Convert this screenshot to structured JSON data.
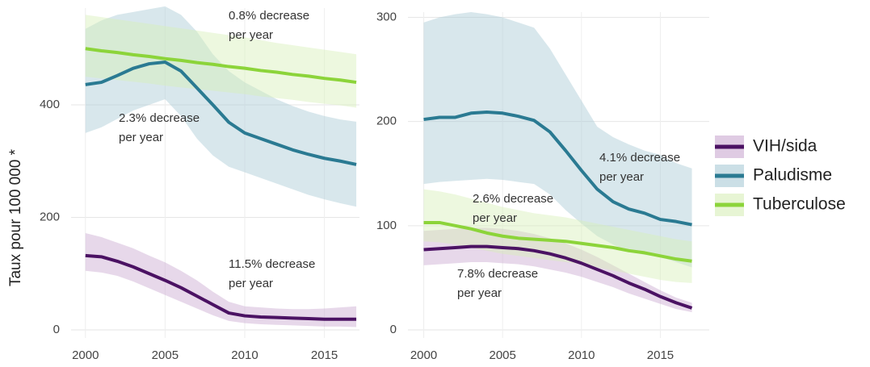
{
  "chart_data": [
    {
      "type": "line",
      "ylabel": "Taux pour 100 000 *",
      "legend": "right",
      "x": [
        2000,
        2001,
        2002,
        2003,
        2004,
        2005,
        2006,
        2007,
        2008,
        2009,
        2010,
        2011,
        2012,
        2013,
        2014,
        2015,
        2016,
        2017
      ],
      "xlim": [
        1999.1,
        2017.2
      ],
      "xticks": [
        2000,
        2005,
        2010,
        2015
      ],
      "ylim": [
        0,
        572
      ],
      "yticks": [
        0,
        200,
        400
      ],
      "grid": true,
      "series": [
        {
          "name": "VIH/sida",
          "color": "#4b1263",
          "band_color": "#c9a9d0",
          "values": [
            132,
            130,
            122,
            112,
            100,
            88,
            75,
            60,
            45,
            30,
            25,
            23,
            22,
            21,
            20,
            19,
            19,
            19
          ],
          "upper": [
            172,
            165,
            155,
            145,
            132,
            120,
            105,
            88,
            68,
            50,
            42,
            40,
            38,
            37,
            37,
            38,
            40,
            42
          ],
          "lower": [
            105,
            102,
            96,
            86,
            74,
            62,
            50,
            38,
            26,
            16,
            12,
            10,
            9,
            8,
            7,
            6,
            6,
            5
          ]
        },
        {
          "name": "Paludisme",
          "color": "#2a7a92",
          "band_color": "#a9cad5",
          "values": [
            436,
            440,
            452,
            465,
            473,
            476,
            460,
            430,
            400,
            369,
            350,
            340,
            330,
            320,
            312,
            305,
            300,
            294
          ],
          "upper": [
            535,
            550,
            560,
            565,
            570,
            575,
            560,
            530,
            490,
            460,
            440,
            425,
            410,
            398,
            388,
            380,
            374,
            370
          ],
          "lower": [
            350,
            360,
            375,
            390,
            400,
            410,
            380,
            340,
            310,
            290,
            280,
            270,
            260,
            250,
            240,
            232,
            225,
            219
          ]
        },
        {
          "name": "Tuberculose",
          "color": "#8cd43a",
          "band_color": "#d7efb8",
          "values": [
            500,
            496,
            493,
            489,
            486,
            482,
            479,
            475,
            472,
            468,
            465,
            461,
            458,
            454,
            451,
            447,
            444,
            440
          ],
          "upper": [
            560,
            556,
            552,
            548,
            544,
            540,
            536,
            532,
            528,
            524,
            520,
            515,
            510,
            506,
            502,
            498,
            494,
            490
          ],
          "lower": [
            450,
            447,
            444,
            441,
            438,
            434,
            431,
            428,
            425,
            422,
            419,
            415,
            412,
            409,
            405,
            402,
            399,
            395
          ]
        }
      ],
      "annotations": [
        {
          "text": [
            "0.8% decrease",
            "per year"
          ],
          "color": "#8cd43a"
        },
        {
          "text": [
            "2.3% decrease",
            "per year"
          ],
          "color": "#2a7a92"
        },
        {
          "text": [
            "11.5% decrease",
            "per year"
          ],
          "color": "#4b1263"
        }
      ]
    },
    {
      "type": "line",
      "x": [
        2000,
        2001,
        2002,
        2003,
        2004,
        2005,
        2006,
        2007,
        2008,
        2009,
        2010,
        2011,
        2012,
        2013,
        2014,
        2015,
        2016,
        2017
      ],
      "xlim": [
        1999.0,
        2018.1
      ],
      "xticks": [
        2000,
        2005,
        2010,
        2015
      ],
      "ylim": [
        0,
        305
      ],
      "yticks": [
        0,
        100,
        200,
        300
      ],
      "grid": true,
      "series": [
        {
          "color": "#4b1263",
          "band_color": "#c9a9d0",
          "values": [
            77,
            78,
            79,
            80,
            80,
            79,
            78,
            76,
            73,
            69,
            64,
            58,
            52,
            45,
            39,
            32,
            26,
            21
          ],
          "upper": [
            95,
            96,
            97,
            98,
            98,
            97,
            95,
            92,
            88,
            83,
            77,
            70,
            62,
            54,
            46,
            38,
            31,
            26
          ],
          "lower": [
            62,
            63,
            64,
            65,
            65,
            64,
            63,
            61,
            58,
            55,
            51,
            46,
            41,
            35,
            30,
            25,
            20,
            17
          ]
        },
        {
          "color": "#2a7a92",
          "band_color": "#a9cad5",
          "values": [
            202,
            204,
            204,
            208,
            209,
            208,
            205,
            201,
            190,
            172,
            153,
            135,
            123,
            116,
            112,
            106,
            104,
            101
          ],
          "upper": [
            295,
            300,
            303,
            305,
            303,
            300,
            295,
            290,
            270,
            245,
            220,
            195,
            185,
            178,
            172,
            168,
            160,
            155
          ],
          "lower": [
            140,
            142,
            143,
            144,
            145,
            144,
            142,
            140,
            130,
            115,
            102,
            90,
            82,
            75,
            72,
            70,
            65,
            60
          ]
        },
        {
          "color": "#8cd43a",
          "band_color": "#d7efb8",
          "values": [
            103,
            103,
            100,
            97,
            93,
            90,
            88,
            87,
            86,
            85,
            83,
            81,
            79,
            76,
            74,
            71,
            68,
            66
          ],
          "upper": [
            135,
            133,
            130,
            126,
            122,
            118,
            115,
            112,
            110,
            108,
            105,
            102,
            99,
            96,
            93,
            90,
            87,
            85
          ],
          "lower": [
            85,
            84,
            82,
            79,
            76,
            73,
            71,
            69,
            67,
            65,
            63,
            60,
            57,
            54,
            51,
            48,
            46,
            45
          ]
        }
      ],
      "annotations": [
        {
          "text": [
            "4.1% decrease",
            "per year"
          ],
          "color": "#2a7a92"
        },
        {
          "text": [
            "2.6% decrease",
            "per year"
          ],
          "color": "#8cd43a"
        },
        {
          "text": [
            "7.8% decrease",
            "per year"
          ],
          "color": "#4b1263"
        }
      ]
    }
  ]
}
